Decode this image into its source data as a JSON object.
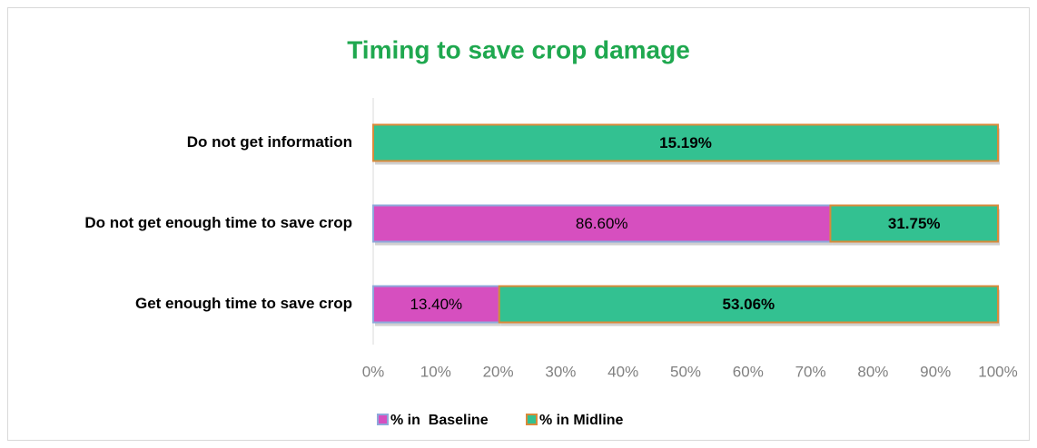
{
  "chart_data": {
    "type": "bar",
    "orientation": "horizontal",
    "stacking": "percent",
    "title": "Timing to save crop damage",
    "categories": [
      "Do not get information",
      "Do not get enough time to save crop",
      "Get enough time to save crop"
    ],
    "series": [
      {
        "name": "% in  Baseline",
        "color": "#d64fbf",
        "border": "#8ea9db",
        "values": [
          null,
          86.6,
          13.4
        ],
        "value_labels": [
          null,
          "86.60%",
          "13.40%"
        ]
      },
      {
        "name": "% in Midline",
        "color": "#33c191",
        "border": "#d98a3a",
        "values": [
          15.19,
          31.75,
          53.06
        ],
        "value_labels": [
          "15.19%",
          "31.75%",
          "53.06%"
        ]
      }
    ],
    "xlim": [
      0,
      100
    ],
    "xticks": [
      {
        "value": 0,
        "label": "0%"
      },
      {
        "value": 10,
        "label": "10%"
      },
      {
        "value": 20,
        "label": "20%"
      },
      {
        "value": 30,
        "label": "30%"
      },
      {
        "value": 40,
        "label": "40%"
      },
      {
        "value": 50,
        "label": "50%"
      },
      {
        "value": 60,
        "label": "60%"
      },
      {
        "value": 70,
        "label": "70%"
      },
      {
        "value": 80,
        "label": "80%"
      },
      {
        "value": 90,
        "label": "90%"
      },
      {
        "value": 100,
        "label": "100%"
      }
    ],
    "legend": "bottom",
    "title_color": "#1fa84f"
  }
}
